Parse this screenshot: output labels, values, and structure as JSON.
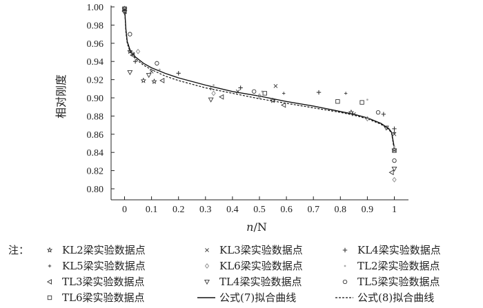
{
  "chart_data": {
    "type": "scatter",
    "title": "",
    "xlabel": "n/N",
    "ylabel": "相对刚度",
    "xlim": [
      -0.05,
      1.02
    ],
    "ylim": [
      0.785,
      1.0
    ],
    "x_ticks": [
      "0",
      "0.1",
      "0.2",
      "0.3",
      "0.4",
      "0.5",
      "0.6",
      "0.7",
      "0.8",
      "0.9",
      "1"
    ],
    "y_ticks": [
      "1.00",
      "0.98",
      "0.96",
      "0.94",
      "0.92",
      "0.90",
      "0.88",
      "0.86",
      "0.84",
      "0.82",
      "0.80"
    ],
    "legend_note": "注：",
    "legend_position": "bottom",
    "series": [
      {
        "name": "KL2梁实验数据点",
        "marker": "star",
        "points": [
          [
            0,
            0.998
          ],
          [
            0.02,
            0.951
          ],
          [
            0.07,
            0.919
          ],
          [
            0.11,
            0.918
          ],
          [
            0.55,
            0.897
          ],
          [
            0.84,
            0.884
          ],
          [
            1.0,
            0.843
          ]
        ]
      },
      {
        "name": "KL3梁实验数据点",
        "marker": "x",
        "points": [
          [
            0,
            0.997
          ],
          [
            0.03,
            0.948
          ],
          [
            0.1,
            0.929
          ],
          [
            0.42,
            0.907
          ],
          [
            0.56,
            0.913
          ],
          [
            0.85,
            0.882
          ],
          [
            1.0,
            0.86
          ]
        ]
      },
      {
        "name": "KL4梁实验数据点",
        "marker": "plus",
        "points": [
          [
            0,
            0.998
          ],
          [
            0.04,
            0.94
          ],
          [
            0.2,
            0.927
          ],
          [
            0.43,
            0.911
          ],
          [
            0.72,
            0.906
          ],
          [
            0.96,
            0.882
          ],
          [
            1.0,
            0.866
          ]
        ]
      },
      {
        "name": "KL5梁实验数据点",
        "marker": "small-plus",
        "points": [
          [
            0,
            0.996
          ],
          [
            0.02,
            0.952
          ],
          [
            0.32,
            0.91
          ],
          [
            0.59,
            0.905
          ],
          [
            0.82,
            0.905
          ],
          [
            1.0,
            0.862
          ]
        ]
      },
      {
        "name": "KL6梁实验数据点",
        "marker": "diamond",
        "points": [
          [
            0,
            0.997
          ],
          [
            0.05,
            0.951
          ],
          [
            0.33,
            0.905
          ],
          [
            0.5,
            0.902
          ],
          [
            0.9,
            0.877
          ],
          [
            1.0,
            0.81
          ]
        ]
      },
      {
        "name": "TL2梁实验数据点",
        "marker": "dot",
        "points": [
          [
            0,
            0.999
          ],
          [
            0.03,
            0.95
          ],
          [
            0.13,
            0.931
          ],
          [
            0.33,
            0.914
          ],
          [
            0.51,
            0.907
          ],
          [
            0.9,
            0.898
          ],
          [
            1.0,
            0.846
          ]
        ]
      },
      {
        "name": "TL3梁实验数据点",
        "marker": "triangle-left",
        "points": [
          [
            0,
            0.995
          ],
          [
            0.03,
            0.947
          ],
          [
            0.14,
            0.919
          ],
          [
            0.36,
            0.901
          ],
          [
            0.59,
            0.892
          ],
          [
            0.99,
            0.818
          ]
        ]
      },
      {
        "name": "TL4梁实验数据点",
        "marker": "triangle-down",
        "points": [
          [
            0,
            0.994
          ],
          [
            0.02,
            0.928
          ],
          [
            0.09,
            0.925
          ],
          [
            0.32,
            0.898
          ],
          [
            0.97,
            0.867
          ],
          [
            1.0,
            0.822
          ]
        ]
      },
      {
        "name": "TL5梁实验数据点",
        "marker": "circle",
        "points": [
          [
            0,
            0.998
          ],
          [
            0.02,
            0.97
          ],
          [
            0.12,
            0.938
          ],
          [
            0.48,
            0.907
          ],
          [
            0.94,
            0.884
          ],
          [
            1.0,
            0.831
          ]
        ]
      },
      {
        "name": "TL6梁实验数据点",
        "marker": "square",
        "points": [
          [
            0,
            0.998
          ],
          [
            0.52,
            0.905
          ],
          [
            0.79,
            0.896
          ],
          [
            0.88,
            0.895
          ],
          [
            1.0,
            0.842
          ]
        ]
      },
      {
        "name": "公式(7)拟合曲线",
        "marker": "line-solid",
        "points": [
          [
            0,
            1.0
          ],
          [
            0.005,
            0.975
          ],
          [
            0.01,
            0.962
          ],
          [
            0.02,
            0.953
          ],
          [
            0.04,
            0.945
          ],
          [
            0.07,
            0.938
          ],
          [
            0.1,
            0.933
          ],
          [
            0.15,
            0.927
          ],
          [
            0.2,
            0.922
          ],
          [
            0.3,
            0.914
          ],
          [
            0.4,
            0.907
          ],
          [
            0.5,
            0.902
          ],
          [
            0.6,
            0.896
          ],
          [
            0.7,
            0.891
          ],
          [
            0.8,
            0.885
          ],
          [
            0.85,
            0.882
          ],
          [
            0.9,
            0.878
          ],
          [
            0.95,
            0.872
          ],
          [
            0.98,
            0.866
          ],
          [
            0.99,
            0.862
          ],
          [
            1.0,
            0.845
          ]
        ]
      },
      {
        "name": "公式(8)拟合曲线",
        "marker": "line-dashed",
        "points": [
          [
            0,
            1.0
          ],
          [
            0.005,
            0.972
          ],
          [
            0.01,
            0.96
          ],
          [
            0.02,
            0.951
          ],
          [
            0.04,
            0.943
          ],
          [
            0.07,
            0.936
          ],
          [
            0.1,
            0.931
          ],
          [
            0.15,
            0.924
          ],
          [
            0.2,
            0.919
          ],
          [
            0.3,
            0.911
          ],
          [
            0.4,
            0.905
          ],
          [
            0.5,
            0.899
          ],
          [
            0.6,
            0.894
          ],
          [
            0.7,
            0.889
          ],
          [
            0.8,
            0.884
          ],
          [
            0.85,
            0.881
          ],
          [
            0.9,
            0.877
          ],
          [
            0.95,
            0.871
          ],
          [
            0.98,
            0.865
          ],
          [
            0.99,
            0.861
          ],
          [
            1.0,
            0.842
          ]
        ]
      }
    ]
  }
}
